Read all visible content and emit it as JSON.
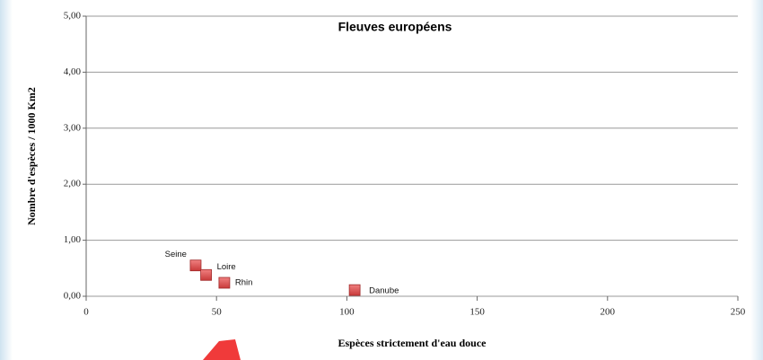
{
  "chart_data": {
    "type": "scatter",
    "title": "Fleuves européens",
    "x_label": "Espèces strictement d'eau douce",
    "y_label": "Nombre d'espèces / 1000 Km2",
    "labels": [
      "Seine",
      "Loire",
      "Rhin",
      "Danube"
    ],
    "x": [
      42,
      46,
      53,
      103
    ],
    "values": [
      0.55,
      0.38,
      0.24,
      0.11
    ],
    "color": "#d9534f",
    "xlim": [
      0,
      250
    ],
    "xticks": [
      0,
      50,
      100,
      150,
      200,
      250
    ],
    "ylim": [
      0,
      5
    ],
    "yticks": [
      {
        "value": 0,
        "label": "0,00"
      },
      {
        "value": 1,
        "label": "1,00"
      },
      {
        "value": 2,
        "label": "2,00"
      },
      {
        "value": 3,
        "label": "3,00"
      },
      {
        "value": 4,
        "label": "4,00"
      },
      {
        "value": 5,
        "label": "5,00"
      }
    ],
    "grid": true
  }
}
